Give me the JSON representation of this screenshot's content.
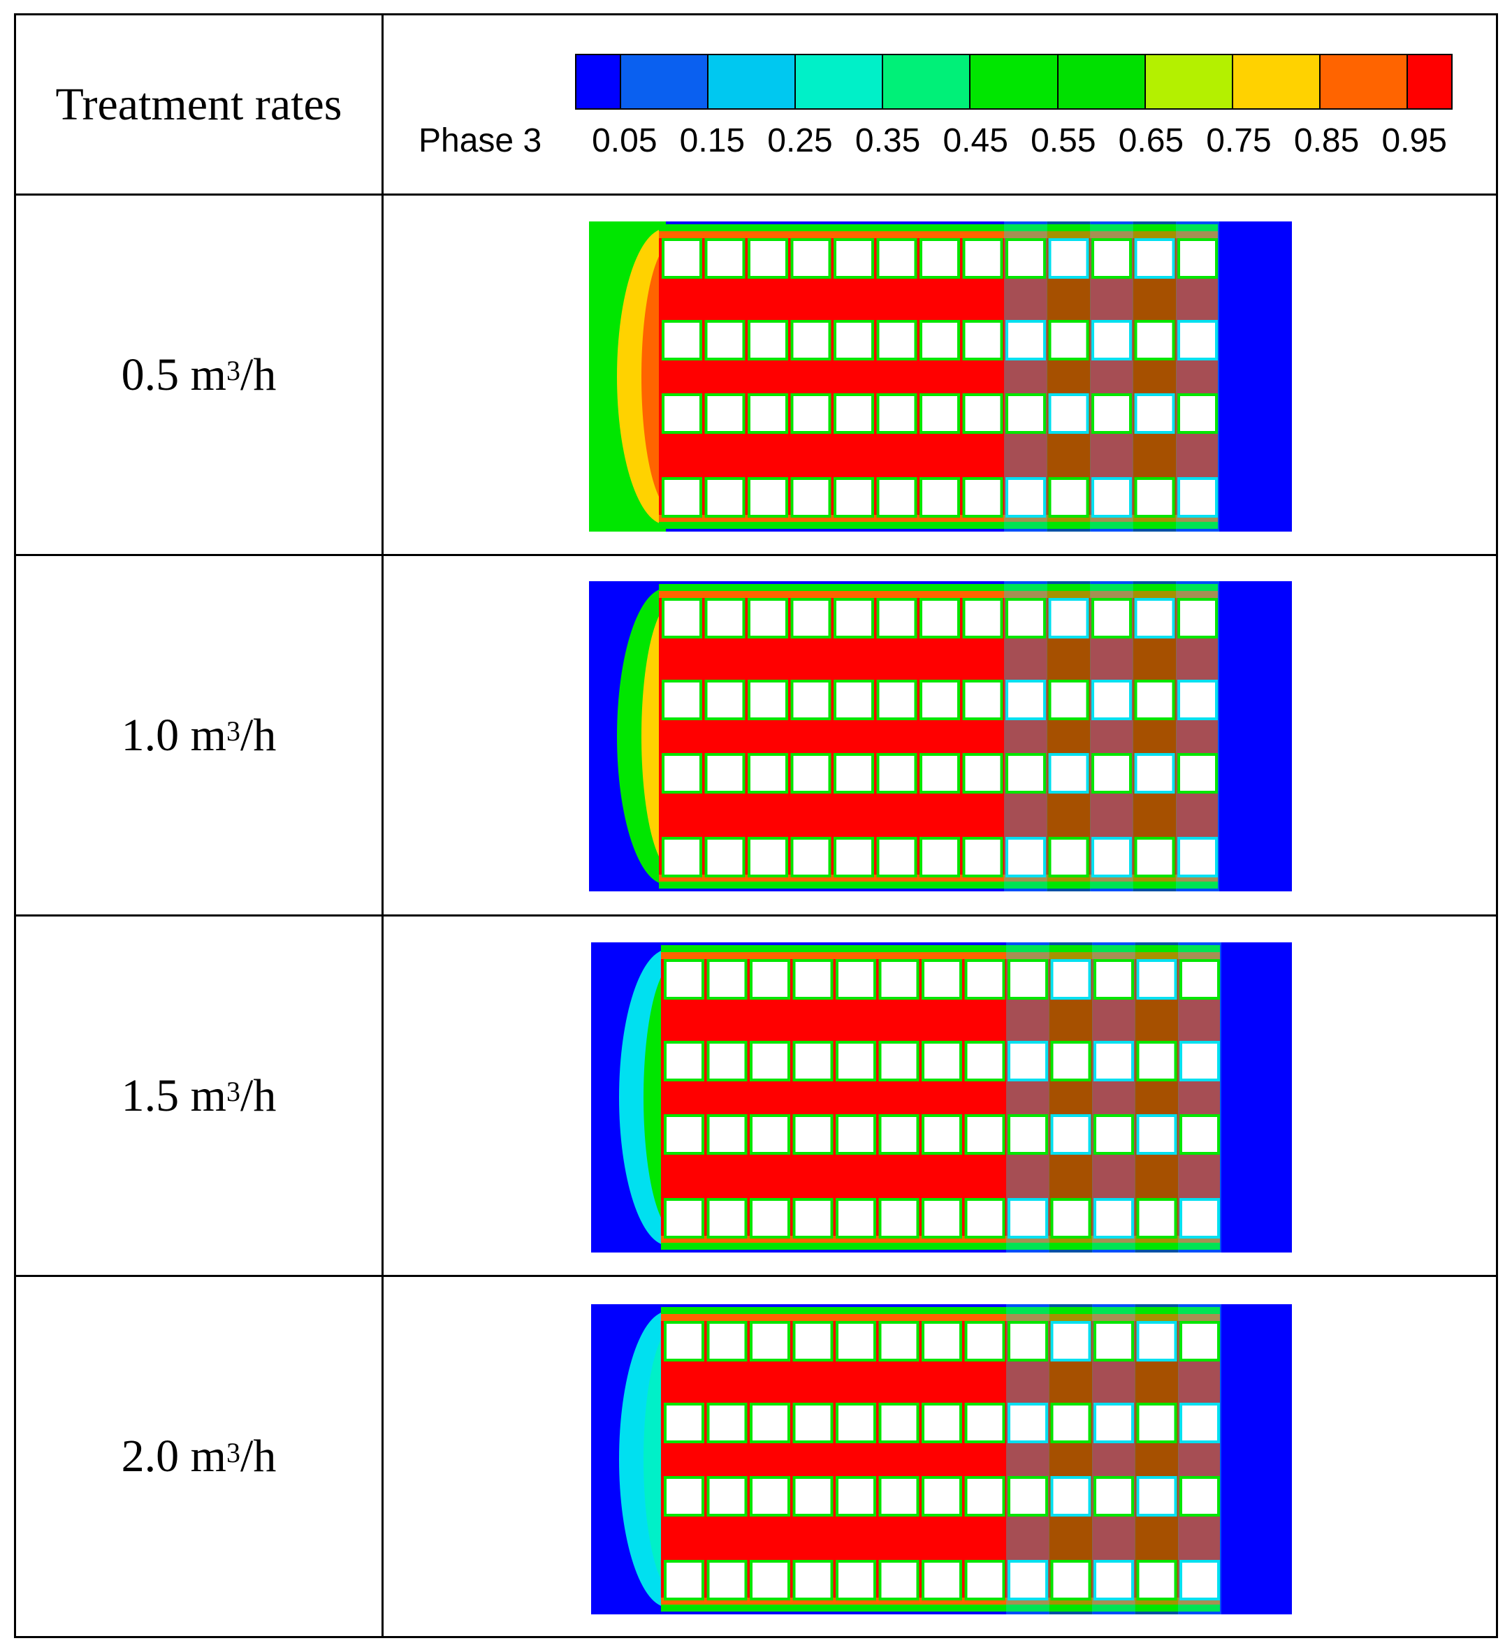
{
  "header": {
    "left_label": "Treatment rates"
  },
  "legend": {
    "title": "Phase 3",
    "ticks": [
      "0.05",
      "0.15",
      "0.25",
      "0.35",
      "0.45",
      "0.55",
      "0.65",
      "0.75",
      "0.85",
      "0.95"
    ],
    "colors": [
      "#0000ff",
      "#0a60f0",
      "#00c8f0",
      "#00f0c8",
      "#00f078",
      "#00e600",
      "#00e000",
      "#b4f000",
      "#ffd200",
      "#ff6400",
      "#ff0000"
    ]
  },
  "rows": [
    {
      "rate": "0.5",
      "unit_base": "m",
      "unit_exp": "3",
      "unit_tail": "/h",
      "inlet": "red"
    },
    {
      "rate": "1.0",
      "unit_base": "m",
      "unit_exp": "3",
      "unit_tail": "/h",
      "inlet": "yellow"
    },
    {
      "rate": "1.5",
      "unit_base": "m",
      "unit_exp": "3",
      "unit_tail": "/h",
      "inlet": "green"
    },
    {
      "rate": "2.0",
      "unit_base": "m",
      "unit_exp": "3",
      "unit_tail": "/h",
      "inlet": "cyan"
    }
  ]
}
